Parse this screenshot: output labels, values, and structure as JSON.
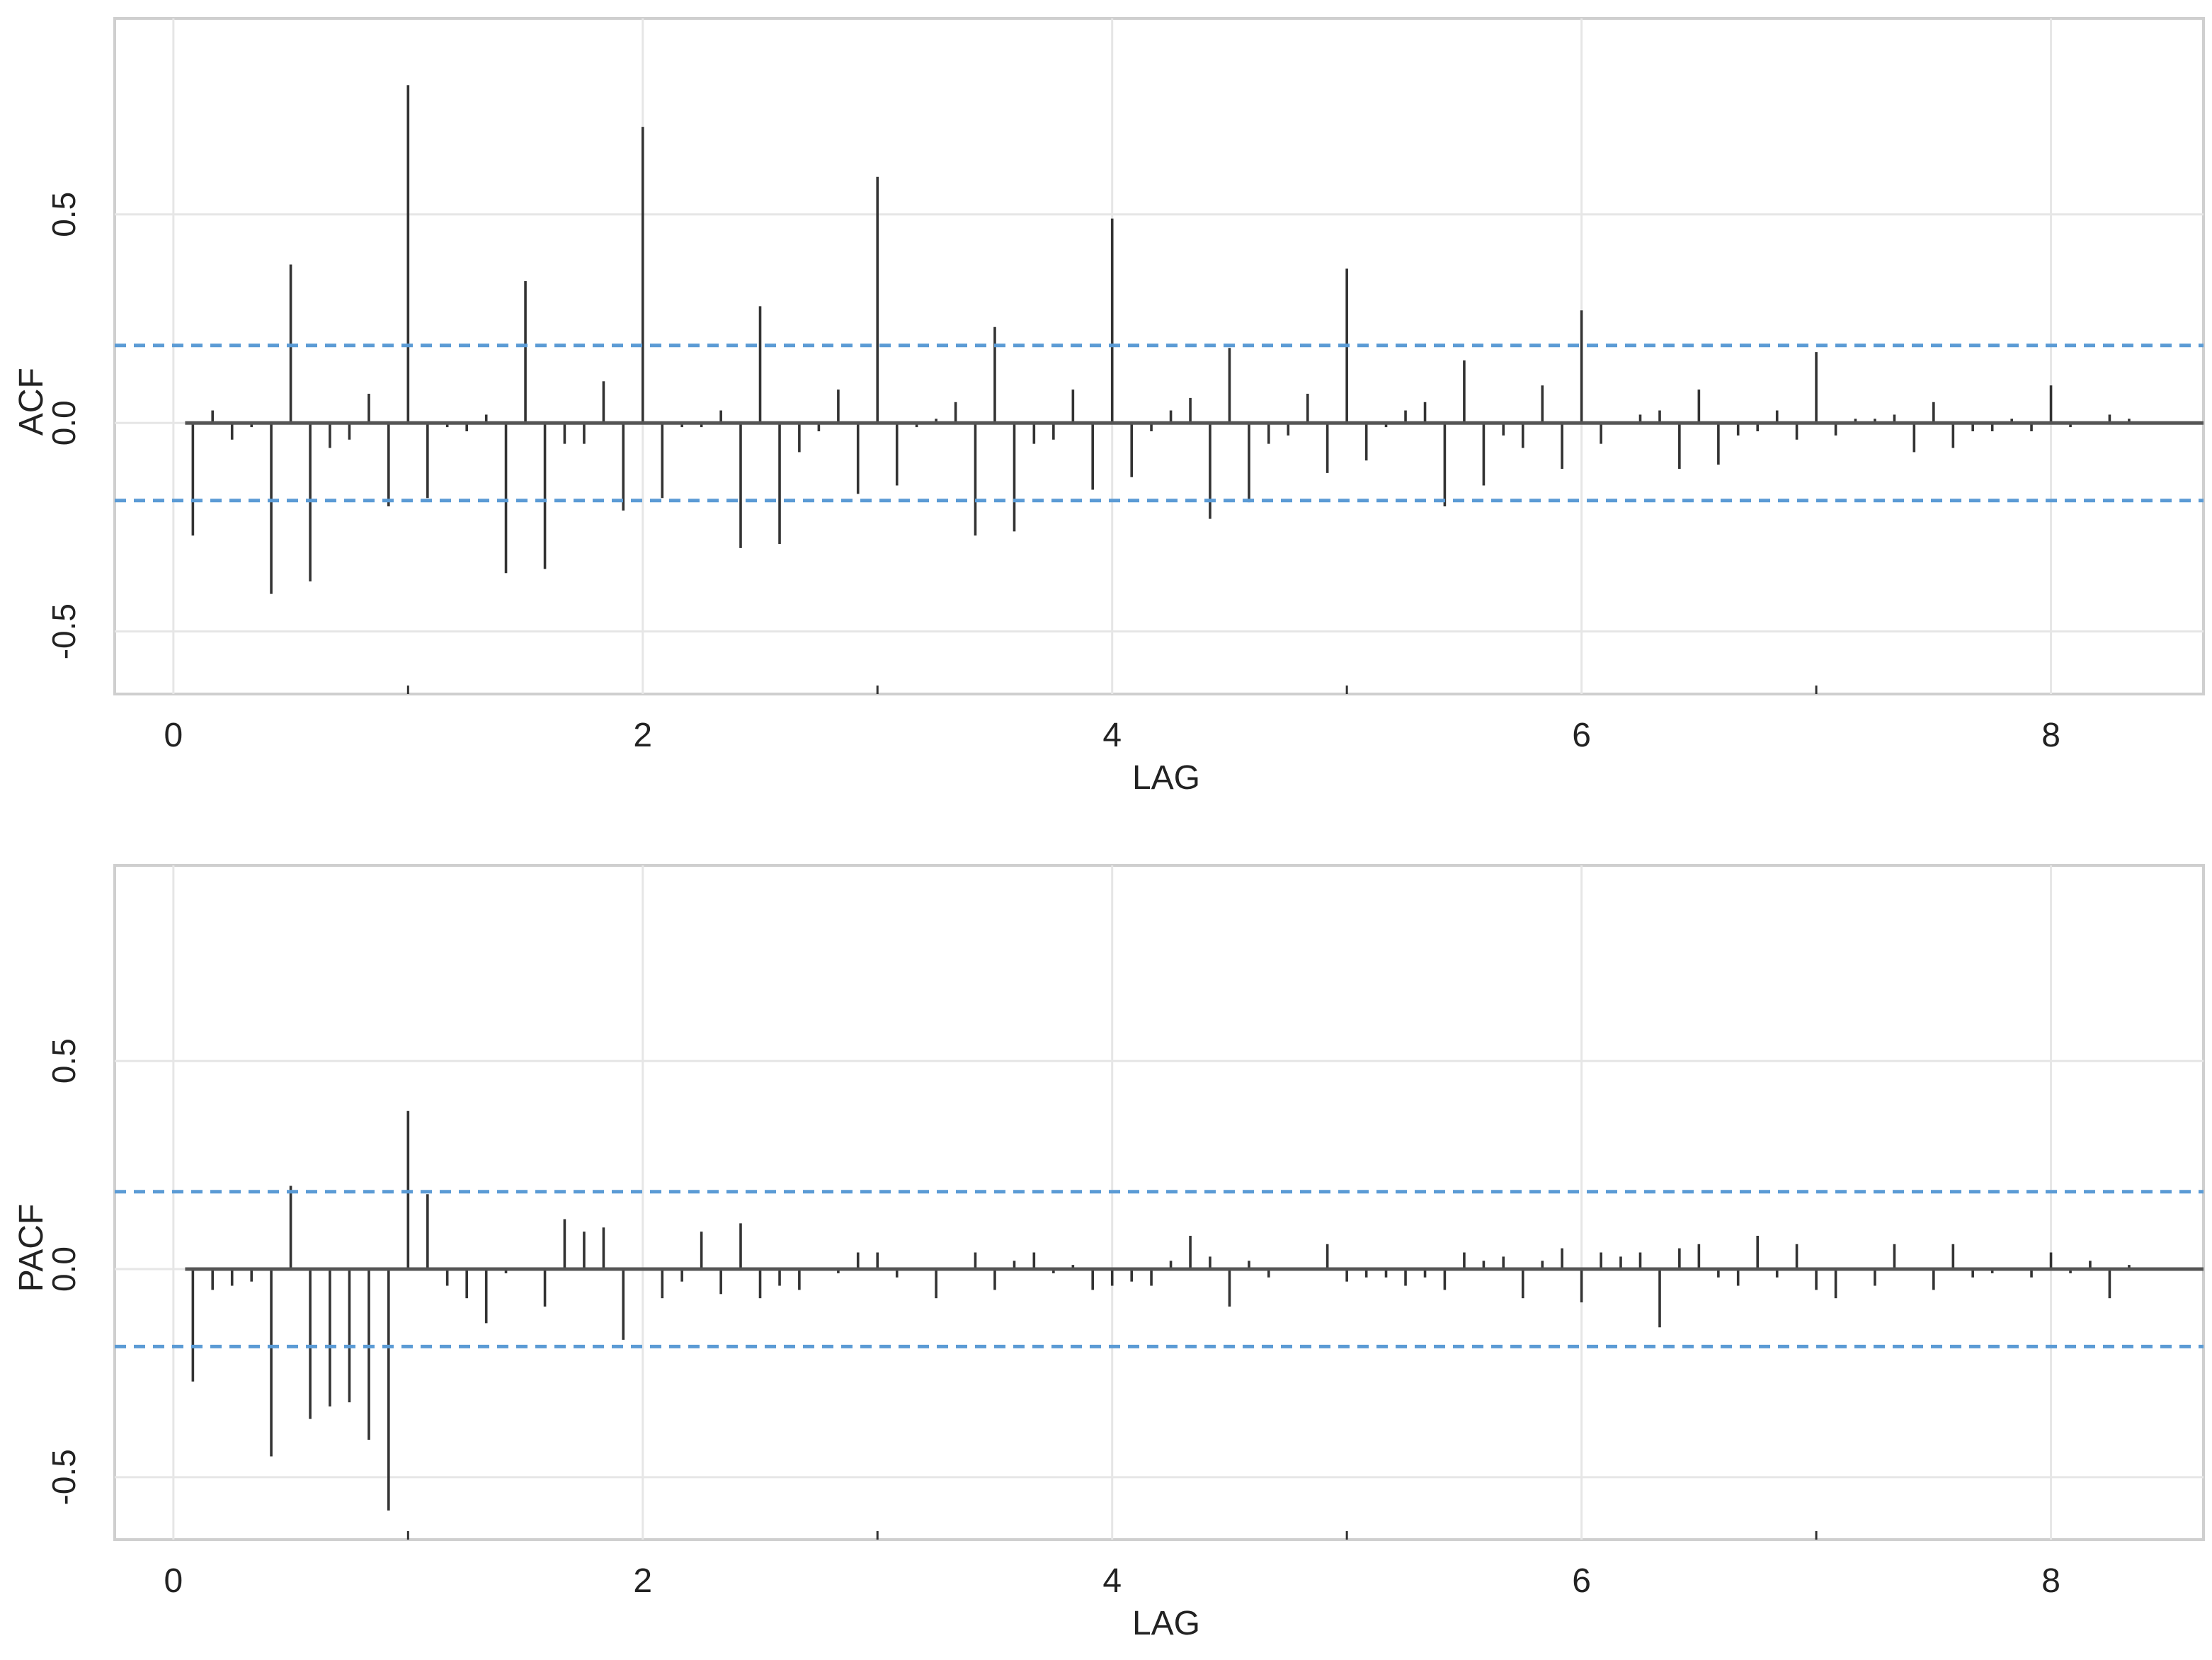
{
  "chart_data": [
    {
      "type": "bar",
      "ylabel": "ACF",
      "xlabel": "LAG",
      "x_ticks": [
        0,
        2,
        4,
        6,
        8
      ],
      "x_tick_labels": [
        "0",
        "2",
        "4",
        "6",
        "8"
      ],
      "y_ticks": [
        -0.5,
        0.0,
        0.5
      ],
      "y_tick_labels": [
        "-0.5",
        "0.0",
        "0.5"
      ],
      "xlim": [
        -0.25,
        8.65
      ],
      "ylim": [
        -0.65,
        0.97
      ],
      "grid": true,
      "confidence_bounds": [
        0.186,
        -0.186
      ],
      "lags": [
        0.083,
        0.167,
        0.25,
        0.333,
        0.417,
        0.5,
        0.583,
        0.667,
        0.75,
        0.833,
        0.917,
        1.0,
        1.083,
        1.167,
        1.25,
        1.333,
        1.417,
        1.5,
        1.583,
        1.667,
        1.75,
        1.833,
        1.917,
        2.0,
        2.083,
        2.167,
        2.25,
        2.333,
        2.417,
        2.5,
        2.583,
        2.667,
        2.75,
        2.833,
        2.917,
        3.0,
        3.083,
        3.167,
        3.25,
        3.333,
        3.417,
        3.5,
        3.583,
        3.667,
        3.75,
        3.833,
        3.917,
        4.0,
        4.083,
        4.167,
        4.25,
        4.333,
        4.417,
        4.5,
        4.583,
        4.667,
        4.75,
        4.833,
        4.917,
        5.0,
        5.083,
        5.167,
        5.25,
        5.333,
        5.417,
        5.5,
        5.583,
        5.667,
        5.75,
        5.833,
        5.917,
        6.0,
        6.083,
        6.167,
        6.25,
        6.333,
        6.417,
        6.5,
        6.583,
        6.667,
        6.75,
        6.833,
        6.917,
        7.0,
        7.083,
        7.167,
        7.25,
        7.333,
        7.417,
        7.5,
        7.583,
        7.667,
        7.75,
        7.833,
        7.917,
        8.0,
        8.083,
        8.167,
        8.25,
        8.333
      ],
      "values": [
        -0.27,
        0.03,
        -0.04,
        -0.01,
        -0.41,
        0.38,
        -0.38,
        -0.06,
        -0.04,
        0.07,
        -0.2,
        0.81,
        -0.18,
        -0.01,
        -0.02,
        0.02,
        -0.36,
        0.34,
        -0.35,
        -0.05,
        -0.05,
        0.1,
        -0.21,
        0.71,
        -0.18,
        -0.01,
        -0.01,
        0.03,
        -0.3,
        0.28,
        -0.29,
        -0.07,
        -0.02,
        0.08,
        -0.17,
        0.59,
        -0.15,
        -0.01,
        0.01,
        0.05,
        -0.27,
        0.23,
        -0.26,
        -0.05,
        -0.04,
        0.08,
        -0.16,
        0.49,
        -0.13,
        -0.02,
        0.03,
        0.06,
        -0.23,
        0.18,
        -0.19,
        -0.05,
        -0.03,
        0.07,
        -0.12,
        0.37,
        -0.09,
        -0.01,
        0.03,
        0.05,
        -0.2,
        0.15,
        -0.15,
        -0.03,
        -0.06,
        0.09,
        -0.11,
        0.27,
        -0.05,
        0.0,
        0.02,
        0.03,
        -0.11,
        0.08,
        -0.1,
        -0.03,
        -0.02,
        0.03,
        -0.04,
        0.17,
        -0.03,
        0.01,
        0.01,
        0.02,
        -0.07,
        0.05,
        -0.06,
        -0.02,
        -0.02,
        0.01,
        -0.02,
        0.09,
        -0.01,
        0.0,
        0.02,
        0.01
      ]
    },
    {
      "type": "bar",
      "ylabel": "PACF",
      "xlabel": "LAG",
      "x_ticks": [
        0,
        2,
        4,
        6,
        8
      ],
      "x_tick_labels": [
        "0",
        "2",
        "4",
        "6",
        "8"
      ],
      "y_ticks": [
        -0.5,
        0.0,
        0.5
      ],
      "y_tick_labels": [
        "-0.5",
        "0.0",
        "0.5"
      ],
      "xlim": [
        -0.25,
        8.65
      ],
      "ylim": [
        -0.65,
        0.97
      ],
      "grid": true,
      "confidence_bounds": [
        0.186,
        -0.186
      ],
      "lags": [
        0.083,
        0.167,
        0.25,
        0.333,
        0.417,
        0.5,
        0.583,
        0.667,
        0.75,
        0.833,
        0.917,
        1.0,
        1.083,
        1.167,
        1.25,
        1.333,
        1.417,
        1.5,
        1.583,
        1.667,
        1.75,
        1.833,
        1.917,
        2.0,
        2.083,
        2.167,
        2.25,
        2.333,
        2.417,
        2.5,
        2.583,
        2.667,
        2.75,
        2.833,
        2.917,
        3.0,
        3.083,
        3.167,
        3.25,
        3.333,
        3.417,
        3.5,
        3.583,
        3.667,
        3.75,
        3.833,
        3.917,
        4.0,
        4.083,
        4.167,
        4.25,
        4.333,
        4.417,
        4.5,
        4.583,
        4.667,
        4.75,
        4.833,
        4.917,
        5.0,
        5.083,
        5.167,
        5.25,
        5.333,
        5.417,
        5.5,
        5.583,
        5.667,
        5.75,
        5.833,
        5.917,
        6.0,
        6.083,
        6.167,
        6.25,
        6.333,
        6.417,
        6.5,
        6.583,
        6.667,
        6.75,
        6.833,
        6.917,
        7.0,
        7.083,
        7.167,
        7.25,
        7.333,
        7.417,
        7.5,
        7.583,
        7.667,
        7.75,
        7.833,
        7.917,
        8.0,
        8.083,
        8.167,
        8.25,
        8.333
      ],
      "values": [
        -0.27,
        -0.05,
        -0.04,
        -0.03,
        -0.45,
        0.2,
        -0.36,
        -0.33,
        -0.32,
        -0.41,
        -0.58,
        0.38,
        0.18,
        -0.04,
        -0.07,
        -0.13,
        -0.01,
        0.0,
        -0.09,
        0.12,
        0.09,
        0.1,
        -0.17,
        0.0,
        -0.07,
        -0.03,
        0.09,
        -0.06,
        0.11,
        -0.07,
        -0.04,
        -0.05,
        0.0,
        -0.01,
        0.04,
        0.04,
        -0.02,
        0.0,
        -0.07,
        0.0,
        0.04,
        -0.05,
        0.02,
        0.04,
        -0.01,
        0.01,
        -0.05,
        -0.04,
        -0.03,
        -0.04,
        0.02,
        0.08,
        0.03,
        -0.09,
        0.02,
        -0.02,
        0.0,
        0.0,
        0.06,
        -0.03,
        -0.02,
        -0.02,
        -0.04,
        -0.02,
        -0.05,
        0.04,
        0.02,
        0.03,
        -0.07,
        0.02,
        0.05,
        -0.08,
        0.04,
        0.03,
        0.04,
        -0.14,
        0.05,
        0.06,
        -0.02,
        -0.04,
        0.08,
        -0.02,
        0.06,
        -0.05,
        -0.07,
        0.0,
        -0.04,
        0.06,
        0.0,
        -0.05,
        0.06,
        -0.02,
        -0.01,
        0.0,
        -0.02,
        0.04,
        -0.01,
        0.02,
        -0.07,
        0.01
      ]
    }
  ]
}
